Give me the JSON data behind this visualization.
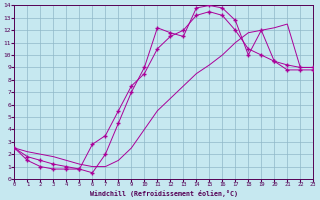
{
  "xlabel": "Windchill (Refroidissement éolien,°C)",
  "xlim": [
    0,
    23
  ],
  "ylim": [
    0,
    14
  ],
  "xticks": [
    0,
    1,
    2,
    3,
    4,
    5,
    6,
    7,
    8,
    9,
    10,
    11,
    12,
    13,
    14,
    15,
    16,
    17,
    18,
    19,
    20,
    21,
    22,
    23
  ],
  "yticks": [
    0,
    1,
    2,
    3,
    4,
    5,
    6,
    7,
    8,
    9,
    10,
    11,
    12,
    13,
    14
  ],
  "bg_color": "#c6e8f0",
  "grid_color": "#90b8c8",
  "line_color": "#aa0099",
  "curve1_x": [
    0,
    1,
    2,
    3,
    4,
    5,
    6,
    7,
    8,
    9,
    10,
    11,
    12,
    13,
    14,
    15,
    16,
    17,
    18,
    19,
    20,
    21,
    22,
    23
  ],
  "curve1_y": [
    2.5,
    1.5,
    1.0,
    0.8,
    0.8,
    0.8,
    0.5,
    2.0,
    4.5,
    7.0,
    9.0,
    12.2,
    11.8,
    11.5,
    13.8,
    14.0,
    13.8,
    12.8,
    10.0,
    12.0,
    9.5,
    8.8,
    8.8,
    8.8
  ],
  "curve2_x": [
    0,
    1,
    2,
    3,
    4,
    5,
    6,
    7,
    8,
    9,
    10,
    11,
    12,
    13,
    14,
    15,
    16,
    17,
    18,
    19,
    20,
    21,
    22,
    23
  ],
  "curve2_y": [
    2.5,
    1.8,
    1.5,
    1.2,
    1.0,
    0.8,
    2.8,
    3.5,
    5.5,
    7.5,
    8.5,
    10.5,
    11.5,
    12.0,
    13.2,
    13.5,
    13.2,
    12.0,
    10.5,
    10.0,
    9.5,
    9.2,
    9.0,
    9.0
  ],
  "curve3_x": [
    0,
    1,
    2,
    3,
    4,
    5,
    6,
    7,
    8,
    9,
    10,
    11,
    12,
    13,
    14,
    15,
    16,
    17,
    18,
    19,
    20,
    21,
    22,
    23
  ],
  "curve3_y": [
    2.5,
    2.2,
    2.0,
    1.8,
    1.5,
    1.2,
    1.0,
    1.0,
    1.5,
    2.5,
    4.0,
    5.5,
    6.5,
    7.5,
    8.5,
    9.2,
    10.0,
    11.0,
    11.8,
    12.0,
    12.2,
    12.5,
    9.0,
    9.0
  ]
}
